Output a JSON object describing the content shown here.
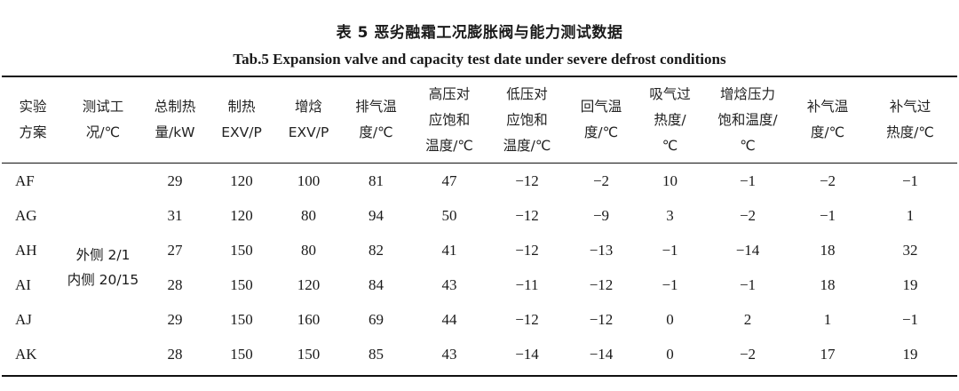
{
  "caption": {
    "cn": "表 5 恶劣融霜工况膨胀阀与能力测试数据",
    "en": "Tab.5 Expansion valve and capacity test date under severe defrost conditions"
  },
  "table": {
    "headers": [
      [
        "实验",
        "方案"
      ],
      [
        "测试工",
        "况/℃"
      ],
      [
        "总制热",
        "量/kW"
      ],
      [
        "制热",
        "EXV/P"
      ],
      [
        "增焓",
        "EXV/P"
      ],
      [
        "排气温",
        "度/℃"
      ],
      [
        "高压对",
        "应饱和",
        "温度/℃"
      ],
      [
        "低压对",
        "应饱和",
        "温度/℃"
      ],
      [
        "回气温",
        "度/℃"
      ],
      [
        "吸气过",
        "热度/",
        "℃"
      ],
      [
        "增焓压力",
        "饱和温度/",
        "℃"
      ],
      [
        "补气温",
        "度/℃"
      ],
      [
        "补气过",
        "热度/℃"
      ]
    ],
    "condition": [
      "外侧 2/1",
      "内侧 20/15"
    ],
    "rows": [
      {
        "id": "AF",
        "cells": [
          "29",
          "120",
          "100",
          "81",
          "47",
          "−12",
          "−2",
          "10",
          "−1",
          "−2",
          "−1"
        ]
      },
      {
        "id": "AG",
        "cells": [
          "31",
          "120",
          "80",
          "94",
          "50",
          "−12",
          "−9",
          "3",
          "−2",
          "−1",
          "1"
        ]
      },
      {
        "id": "AH",
        "cells": [
          "27",
          "150",
          "80",
          "82",
          "41",
          "−12",
          "−13",
          "−1",
          "−14",
          "18",
          "32"
        ]
      },
      {
        "id": "AI",
        "cells": [
          "28",
          "150",
          "120",
          "84",
          "43",
          "−11",
          "−12",
          "−1",
          "−1",
          "18",
          "19"
        ]
      },
      {
        "id": "AJ",
        "cells": [
          "29",
          "150",
          "160",
          "69",
          "44",
          "−12",
          "−12",
          "0",
          "2",
          "1",
          "−1"
        ]
      },
      {
        "id": "AK",
        "cells": [
          "28",
          "150",
          "150",
          "85",
          "43",
          "−14",
          "−14",
          "0",
          "−2",
          "17",
          "19"
        ]
      }
    ]
  }
}
